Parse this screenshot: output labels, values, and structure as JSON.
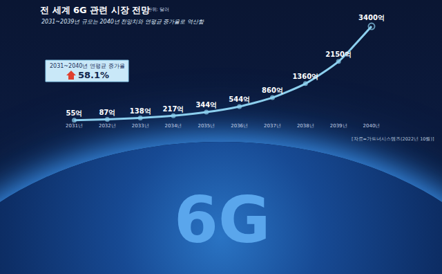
{
  "chart_data": {
    "type": "line",
    "title": "전 세계 6G 관련 시장 전망",
    "subtitle": "2031~2039년 규모는 2040년 전망치와 연평균 증가율로 역산함",
    "annotations": [
      "*단위: 달러",
      "2031~2040년 연평균 증가율",
      "58.1%",
      "[자료=가트너시스템즈(2022년 10월)]",
      "6G"
    ],
    "categories": [
      "2031년",
      "2032년",
      "2033년",
      "2034년",
      "2035년",
      "2036년",
      "2037년",
      "2038년",
      "2039년",
      "2040년"
    ],
    "values": [
      55,
      87,
      138,
      217,
      344,
      544,
      860,
      1360,
      2150,
      3400
    ],
    "value_labels": [
      "55억",
      "87억",
      "138억",
      "217억",
      "344억",
      "544억",
      "860억",
      "1360억",
      "2150억",
      "3400억"
    ],
    "color": "#8ccfee",
    "marker": "circle",
    "ylim": [
      0,
      3600
    ],
    "data_labels": true,
    "tick_labels": "x",
    "grid": false
  }
}
